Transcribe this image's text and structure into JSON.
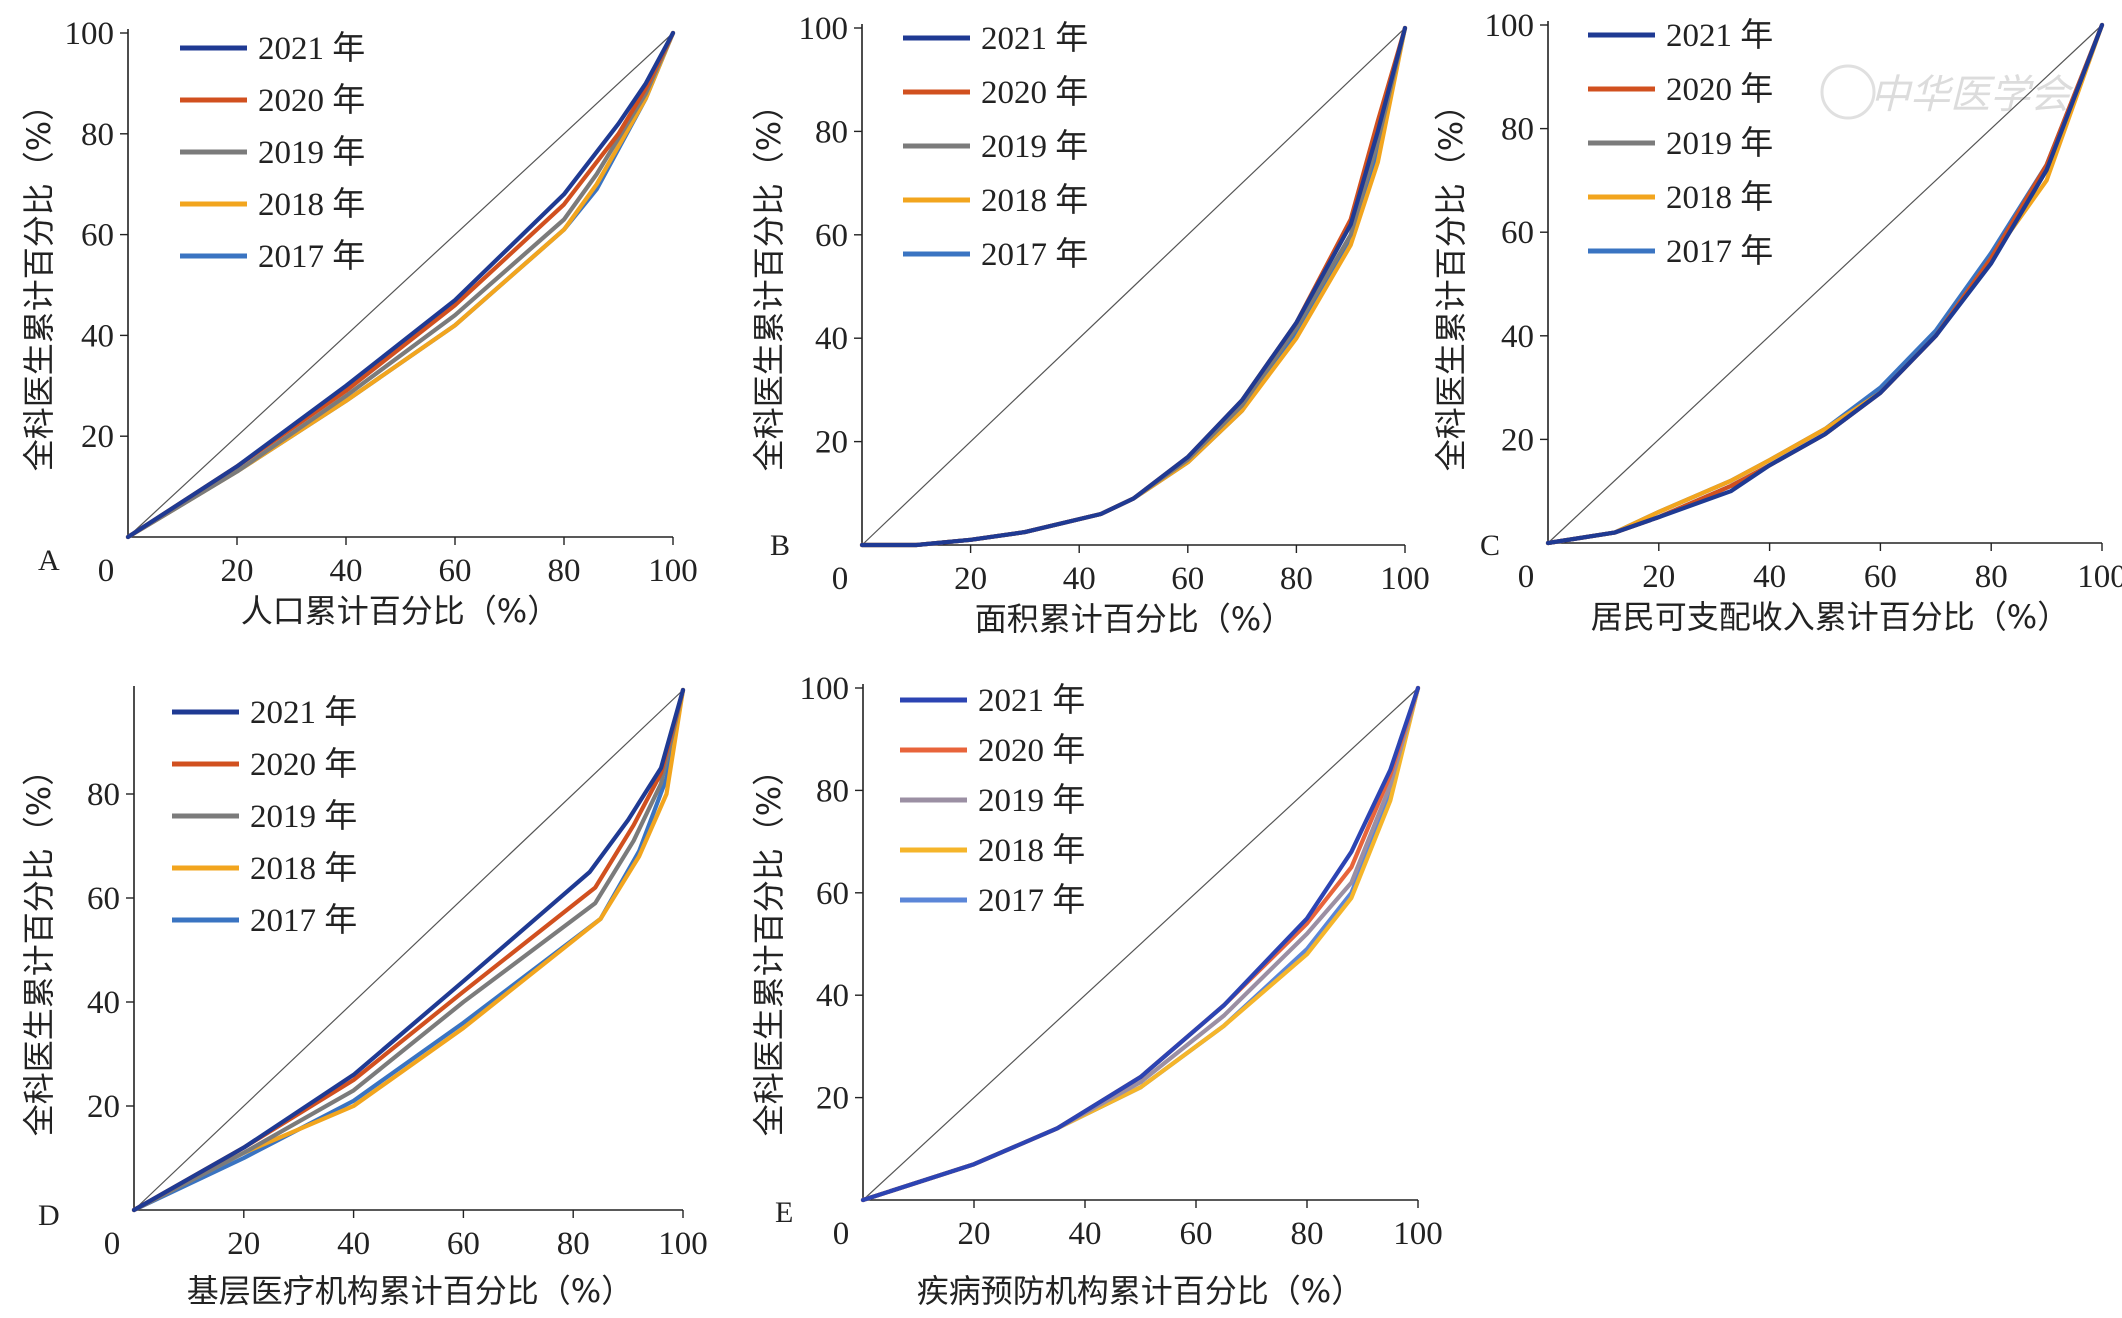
{
  "colors": {
    "s2021": "#1f3a93",
    "s2020": "#d1501f",
    "s2019": "#7b7b7b",
    "s2018": "#f2a51e",
    "s2017": "#3a74c2",
    "e2021": "#2c44b3",
    "e2020": "#e8643b",
    "e2019": "#9b8fa3",
    "e2018": "#f5b52a",
    "e2017": "#5b86d8",
    "equality": "#555555",
    "axis": "#222222"
  },
  "watermark": "中华医学会",
  "chart_data": [
    {
      "panel": "A",
      "type": "line",
      "xlabel": "人口累计百分比（%）",
      "ylabel": "全科医生累计百分比（%）",
      "xticks": [
        "0",
        "20",
        "40",
        "60",
        "80",
        "100"
      ],
      "yticks": [
        "100",
        "80",
        "60",
        "40",
        "20"
      ],
      "xlim": [
        0,
        100
      ],
      "ylim": [
        0,
        100
      ],
      "equality_line": true,
      "series": [
        {
          "name": "2021 年",
          "color_key": "s2021",
          "x": [
            0,
            20,
            40,
            60,
            80,
            90,
            95,
            100
          ],
          "y": [
            0,
            14,
            30,
            47,
            68,
            82,
            90,
            100
          ]
        },
        {
          "name": "2020 年",
          "color_key": "s2020",
          "x": [
            0,
            20,
            40,
            60,
            80,
            90,
            95,
            100
          ],
          "y": [
            0,
            14,
            29,
            46,
            66,
            80,
            89,
            100
          ]
        },
        {
          "name": "2019 年",
          "color_key": "s2019",
          "x": [
            0,
            20,
            40,
            60,
            80,
            86,
            95,
            100
          ],
          "y": [
            0,
            13,
            28,
            44,
            63,
            72,
            88,
            100
          ]
        },
        {
          "name": "2018 年",
          "color_key": "s2018",
          "x": [
            0,
            20,
            40,
            60,
            80,
            86,
            95,
            100
          ],
          "y": [
            0,
            13,
            27,
            42,
            61,
            70,
            87,
            100
          ]
        },
        {
          "name": "2017 年",
          "color_key": "s2017",
          "x": [
            0,
            20,
            40,
            60,
            80,
            86,
            95,
            100
          ],
          "y": [
            0,
            13,
            27,
            42,
            61,
            69,
            87,
            100
          ]
        }
      ]
    },
    {
      "panel": "B",
      "type": "line",
      "xlabel": "面积累计百分比（%）",
      "ylabel": "全科医生累计百分比（%）",
      "xticks": [
        "0",
        "20",
        "40",
        "60",
        "80",
        "100"
      ],
      "yticks": [
        "100",
        "80",
        "60",
        "40",
        "20"
      ],
      "xlim": [
        0,
        100
      ],
      "ylim": [
        0,
        100
      ],
      "equality_line": true,
      "series": [
        {
          "name": "2021 年",
          "color_key": "s2021",
          "x": [
            0,
            10,
            20,
            30,
            44,
            50,
            60,
            70,
            80,
            90,
            95,
            100
          ],
          "y": [
            0,
            0,
            1,
            2.5,
            6,
            9,
            17,
            28,
            43,
            62,
            80,
            100
          ]
        },
        {
          "name": "2020 年",
          "color_key": "s2020",
          "x": [
            0,
            10,
            20,
            30,
            44,
            50,
            60,
            70,
            80,
            90,
            95,
            100
          ],
          "y": [
            0,
            0,
            1,
            2.5,
            6,
            9,
            17,
            28,
            43,
            63,
            82,
            100
          ]
        },
        {
          "name": "2019 年",
          "color_key": "s2019",
          "x": [
            0,
            10,
            20,
            30,
            44,
            50,
            60,
            70,
            80,
            90,
            95,
            100
          ],
          "y": [
            0,
            0,
            1,
            2.5,
            6,
            9,
            16.5,
            27,
            42,
            60,
            78,
            100
          ]
        },
        {
          "name": "2018 年",
          "color_key": "s2018",
          "x": [
            0,
            10,
            20,
            30,
            44,
            50,
            60,
            70,
            80,
            90,
            95,
            100
          ],
          "y": [
            0,
            0,
            1,
            2.5,
            6,
            9,
            16,
            26,
            40,
            58,
            74,
            100
          ]
        },
        {
          "name": "2017 年",
          "color_key": "s2017",
          "x": [
            0,
            10,
            20,
            30,
            44,
            50,
            60,
            70,
            80,
            90,
            95,
            100
          ],
          "y": [
            0,
            0,
            1,
            2.5,
            6,
            9,
            16,
            26,
            41,
            59,
            76,
            100
          ]
        }
      ]
    },
    {
      "panel": "C",
      "type": "line",
      "xlabel": "居民可支配收入累计百分比（%）",
      "ylabel": "全科医生累计百分比（%）",
      "xticks": [
        "0",
        "20",
        "40",
        "60",
        "80",
        "100"
      ],
      "yticks": [
        "100",
        "80",
        "60",
        "40",
        "20"
      ],
      "xlim": [
        0,
        100
      ],
      "ylim": [
        0,
        100
      ],
      "equality_line": true,
      "series": [
        {
          "name": "2021 年",
          "color_key": "s2021",
          "x": [
            0,
            12,
            20,
            33,
            40,
            50,
            60,
            70,
            80,
            90,
            100
          ],
          "y": [
            0,
            2,
            5,
            10,
            15,
            21,
            29,
            40,
            54,
            72,
            100
          ]
        },
        {
          "name": "2020 年",
          "color_key": "s2020",
          "x": [
            0,
            12,
            20,
            33,
            40,
            50,
            60,
            70,
            80,
            90,
            100
          ],
          "y": [
            0,
            2,
            5,
            11,
            15,
            21,
            29,
            40,
            55,
            73,
            100
          ]
        },
        {
          "name": "2019 年",
          "color_key": "s2019",
          "x": [
            0,
            12,
            20,
            33,
            40,
            50,
            60,
            70,
            80,
            90,
            100
          ],
          "y": [
            0,
            2,
            5,
            11,
            15,
            21,
            29,
            40,
            55,
            72,
            100
          ]
        },
        {
          "name": "2018 年",
          "color_key": "s2018",
          "x": [
            0,
            12,
            20,
            33,
            40,
            50,
            60,
            70,
            80,
            90,
            100
          ],
          "y": [
            0,
            2,
            6,
            12,
            16,
            22,
            29,
            40,
            55,
            70,
            100
          ]
        },
        {
          "name": "2017 年",
          "color_key": "s2017",
          "x": [
            0,
            12,
            20,
            33,
            40,
            50,
            60,
            70,
            80,
            90,
            100
          ],
          "y": [
            0,
            2,
            6,
            12,
            16,
            22,
            30,
            41,
            56,
            73,
            100
          ]
        }
      ]
    },
    {
      "panel": "D",
      "type": "line",
      "xlabel": "基层医疗机构累计百分比（%）",
      "ylabel": "全科医生累计百分比（%）",
      "xticks": [
        "0",
        "20",
        "40",
        "60",
        "80",
        "100"
      ],
      "yticks": [
        "80",
        "60",
        "40",
        "20"
      ],
      "xlim": [
        0,
        100
      ],
      "ylim": [
        0,
        100
      ],
      "equality_line": true,
      "series": [
        {
          "name": "2021 年",
          "color_key": "s2021",
          "x": [
            0,
            20,
            40,
            60,
            83,
            90,
            96,
            100
          ],
          "y": [
            0,
            12,
            26,
            44,
            65,
            75,
            85,
            100
          ]
        },
        {
          "name": "2020 年",
          "color_key": "s2020",
          "x": [
            0,
            20,
            40,
            60,
            84,
            91,
            96,
            100
          ],
          "y": [
            0,
            12,
            25,
            42,
            62,
            74,
            84,
            100
          ]
        },
        {
          "name": "2019 年",
          "color_key": "s2019",
          "x": [
            0,
            20,
            40,
            60,
            84,
            91,
            96,
            100
          ],
          "y": [
            0,
            11,
            23,
            40,
            59,
            71,
            82,
            100
          ]
        },
        {
          "name": "2018 年",
          "color_key": "s2018",
          "x": [
            0,
            20,
            40,
            60,
            85,
            92,
            97,
            100
          ],
          "y": [
            0,
            11,
            20,
            35,
            56,
            68,
            80,
            100
          ]
        },
        {
          "name": "2017 年",
          "color_key": "s2017",
          "x": [
            0,
            20,
            40,
            60,
            85,
            92,
            97,
            100
          ],
          "y": [
            0,
            10,
            21,
            36,
            56,
            69,
            83,
            100
          ]
        }
      ]
    },
    {
      "panel": "E",
      "type": "line",
      "xlabel": "疾病预防机构累计百分比（%）",
      "ylabel": "全科医生累计百分比（%）",
      "xticks": [
        "0",
        "20",
        "40",
        "60",
        "80",
        "100"
      ],
      "yticks": [
        "100",
        "80",
        "60",
        "40",
        "20"
      ],
      "xlim": [
        0,
        100
      ],
      "ylim": [
        0,
        100
      ],
      "equality_line": true,
      "series": [
        {
          "name": "2021 年",
          "color_key": "e2021",
          "x": [
            0,
            20,
            35,
            50,
            65,
            80,
            88,
            95,
            100
          ],
          "y": [
            0,
            7,
            14,
            24,
            38,
            55,
            68,
            84,
            100
          ]
        },
        {
          "name": "2020 年",
          "color_key": "e2020",
          "x": [
            0,
            20,
            35,
            50,
            65,
            80,
            88,
            95,
            100
          ],
          "y": [
            0,
            7,
            14,
            24,
            38,
            54,
            65,
            83,
            100
          ]
        },
        {
          "name": "2019 年",
          "color_key": "e2019",
          "x": [
            0,
            20,
            35,
            50,
            65,
            80,
            88,
            95,
            100
          ],
          "y": [
            0,
            7,
            14,
            23,
            36,
            52,
            62,
            81,
            100
          ]
        },
        {
          "name": "2018 年",
          "color_key": "e2018",
          "x": [
            0,
            20,
            35,
            50,
            65,
            80,
            88,
            95,
            100
          ],
          "y": [
            0,
            7,
            14,
            22,
            34,
            48,
            59,
            78,
            100
          ]
        },
        {
          "name": "2017 年",
          "color_key": "e2017",
          "x": [
            0,
            20,
            35,
            50,
            65,
            80,
            88,
            95,
            100
          ],
          "y": [
            0,
            7,
            14,
            22,
            34,
            49,
            60,
            79,
            100
          ]
        }
      ]
    }
  ]
}
